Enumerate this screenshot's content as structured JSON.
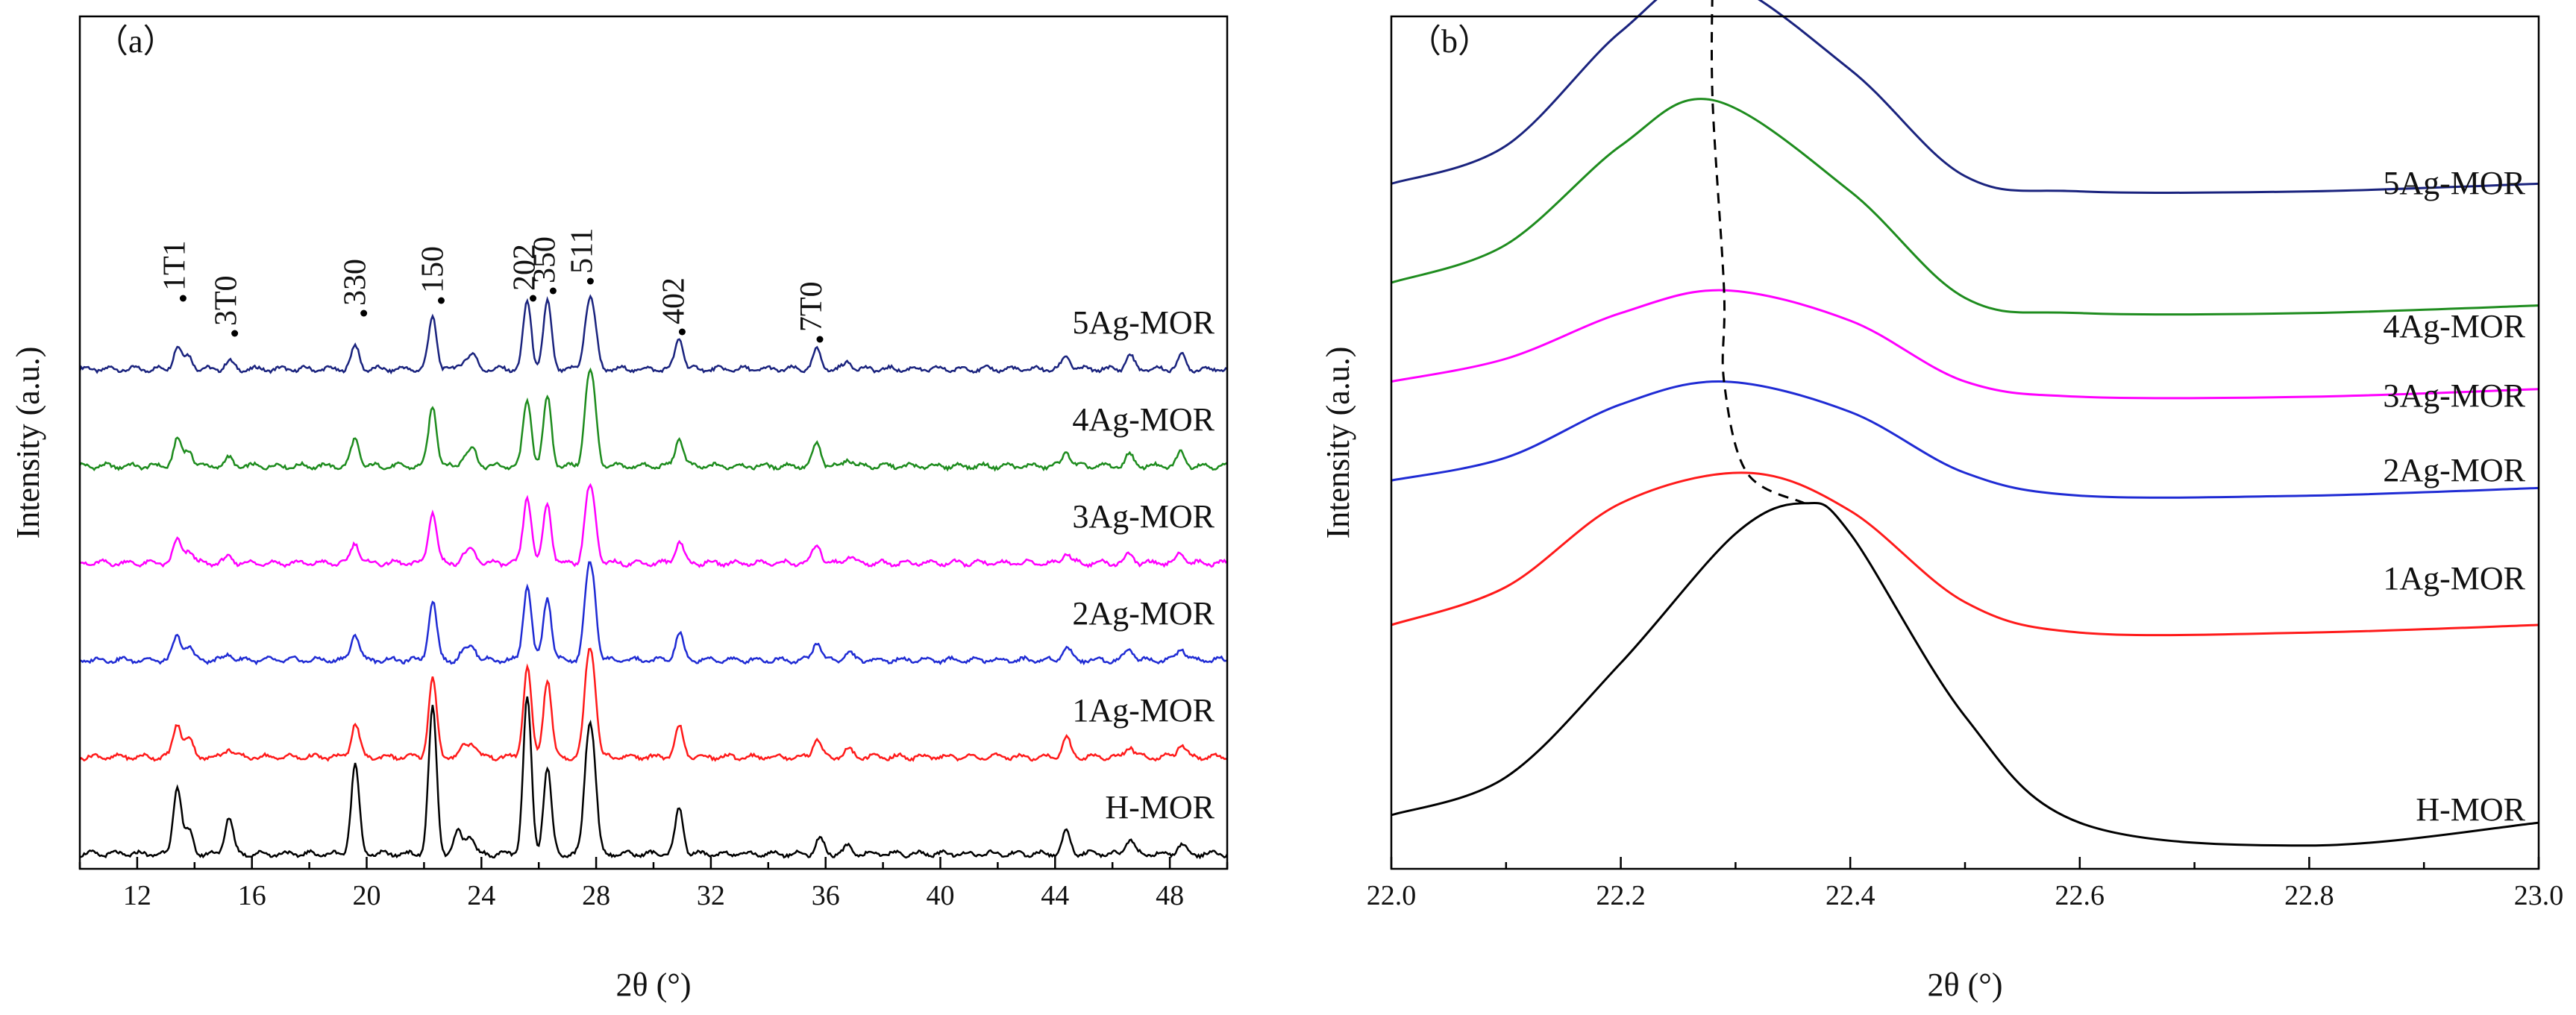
{
  "chart_data": [
    {
      "panel_label": "（a）",
      "type": "line",
      "xlabel": "2θ (°)",
      "ylabel": "Intensity (a.u.)",
      "xlim": [
        10,
        50
      ],
      "xticks": [
        "12",
        "16",
        "20",
        "24",
        "28",
        "32",
        "36",
        "40",
        "44",
        "48"
      ],
      "grid": false,
      "series": [
        {
          "name": "5Ag-MOR",
          "color": "#1a237e",
          "offset": 5,
          "peaks": [
            [
              13.4,
              0.3
            ],
            [
              13.8,
              0.18
            ],
            [
              15.2,
              0.1
            ],
            [
              19.6,
              0.3
            ],
            [
              22.3,
              0.7
            ],
            [
              23.4,
              0.12
            ],
            [
              23.7,
              0.18
            ],
            [
              25.6,
              0.9
            ],
            [
              26.3,
              0.9
            ],
            [
              27.7,
              0.65
            ],
            [
              27.9,
              0.6
            ],
            [
              30.9,
              0.42
            ],
            [
              35.7,
              0.25
            ],
            [
              36.8,
              0.1
            ],
            [
              44.4,
              0.18
            ],
            [
              46.6,
              0.18
            ],
            [
              48.4,
              0.18
            ]
          ]
        },
        {
          "name": "4Ag-MOR",
          "color": "#1e8c1e",
          "offset": 4,
          "peaks": [
            [
              13.4,
              0.35
            ],
            [
              13.8,
              0.22
            ],
            [
              15.2,
              0.1
            ],
            [
              19.6,
              0.36
            ],
            [
              22.3,
              0.82
            ],
            [
              23.4,
              0.12
            ],
            [
              23.7,
              0.22
            ],
            [
              25.6,
              0.9
            ],
            [
              26.3,
              0.92
            ],
            [
              27.7,
              0.85
            ],
            [
              27.9,
              0.8
            ],
            [
              30.9,
              0.38
            ],
            [
              35.7,
              0.3
            ],
            [
              36.8,
              0.1
            ],
            [
              44.4,
              0.2
            ],
            [
              46.6,
              0.15
            ],
            [
              48.4,
              0.18
            ]
          ]
        },
        {
          "name": "3Ag-MOR",
          "color": "#ff00ff",
          "offset": 3,
          "peaks": [
            [
              13.4,
              0.3
            ],
            [
              13.8,
              0.18
            ],
            [
              15.2,
              0.08
            ],
            [
              19.6,
              0.28
            ],
            [
              22.3,
              0.7
            ],
            [
              23.4,
              0.1
            ],
            [
              23.7,
              0.16
            ],
            [
              25.6,
              0.9
            ],
            [
              26.3,
              0.8
            ],
            [
              27.7,
              0.7
            ],
            [
              27.9,
              0.62
            ],
            [
              30.9,
              0.3
            ],
            [
              35.7,
              0.26
            ],
            [
              36.8,
              0.1
            ],
            [
              44.4,
              0.14
            ],
            [
              46.6,
              0.12
            ],
            [
              48.4,
              0.14
            ]
          ]
        },
        {
          "name": "2Ag-MOR",
          "color": "#1f2bd4",
          "offset": 2,
          "peaks": [
            [
              13.4,
              0.32
            ],
            [
              13.8,
              0.18
            ],
            [
              15.2,
              0.08
            ],
            [
              19.6,
              0.36
            ],
            [
              22.3,
              0.8
            ],
            [
              23.4,
              0.12
            ],
            [
              23.7,
              0.18
            ],
            [
              25.6,
              1.0
            ],
            [
              26.3,
              0.85
            ],
            [
              27.7,
              0.88
            ],
            [
              27.9,
              0.8
            ],
            [
              30.9,
              0.35
            ],
            [
              35.7,
              0.25
            ],
            [
              36.8,
              0.1
            ],
            [
              44.4,
              0.18
            ],
            [
              46.6,
              0.16
            ],
            [
              48.4,
              0.16
            ]
          ]
        },
        {
          "name": "1Ag-MOR",
          "color": "#ff1a1a",
          "offset": 1,
          "peaks": [
            [
              13.4,
              0.45
            ],
            [
              13.8,
              0.25
            ],
            [
              15.2,
              0.12
            ],
            [
              19.6,
              0.45
            ],
            [
              22.3,
              1.05
            ],
            [
              23.4,
              0.14
            ],
            [
              23.7,
              0.18
            ],
            [
              25.6,
              1.2
            ],
            [
              26.3,
              1.05
            ],
            [
              27.7,
              1.0
            ],
            [
              27.9,
              0.92
            ],
            [
              30.9,
              0.4
            ],
            [
              35.7,
              0.25
            ],
            [
              36.8,
              0.1
            ],
            [
              44.4,
              0.25
            ],
            [
              46.6,
              0.15
            ],
            [
              48.4,
              0.18
            ]
          ]
        },
        {
          "name": "H-MOR",
          "color": "#000000",
          "offset": 0,
          "peaks": [
            [
              13.4,
              0.9
            ],
            [
              13.8,
              0.3
            ],
            [
              15.2,
              0.5
            ],
            [
              19.6,
              1.2
            ],
            [
              22.3,
              1.95
            ],
            [
              23.2,
              0.3
            ],
            [
              23.6,
              0.25
            ],
            [
              25.6,
              2.1
            ],
            [
              26.3,
              1.15
            ],
            [
              27.7,
              1.2
            ],
            [
              27.9,
              1.1
            ],
            [
              30.9,
              0.6
            ],
            [
              35.8,
              0.2
            ],
            [
              36.8,
              0.1
            ],
            [
              44.4,
              0.3
            ],
            [
              46.6,
              0.2
            ],
            [
              48.4,
              0.12
            ]
          ]
        }
      ],
      "annotations": [
        {
          "label": "1T1",
          "x": 13.6
        },
        {
          "label": "3T0",
          "x": 15.4
        },
        {
          "label": "330",
          "x": 19.9
        },
        {
          "label": "150",
          "x": 22.6
        },
        {
          "label": "202",
          "x": 25.8
        },
        {
          "label": "350",
          "x": 26.5
        },
        {
          "label": "511",
          "x": 27.8
        },
        {
          "label": "402",
          "x": 31.0
        },
        {
          "label": "7T0",
          "x": 35.8
        }
      ]
    },
    {
      "panel_label": "（b）",
      "type": "line",
      "xlabel": "2θ (°)",
      "ylabel": "Intensity (a.u.)",
      "xlim": [
        22.0,
        23.0
      ],
      "xticks": [
        "22.0",
        "22.2",
        "22.4",
        "22.6",
        "22.8",
        "23.0"
      ],
      "grid": false,
      "series": [
        {
          "name": "5Ag-MOR",
          "color": "#1a237e",
          "x": [
            22.0,
            22.1,
            22.2,
            22.28,
            22.4,
            22.5,
            22.6,
            22.8,
            23.0
          ],
          "y": [
            0.88,
            0.93,
            1.08,
            1.15,
            1.03,
            0.89,
            0.87,
            0.87,
            0.88
          ]
        },
        {
          "name": "4Ag-MOR",
          "color": "#1e8c1e",
          "x": [
            22.0,
            22.1,
            22.2,
            22.28,
            22.4,
            22.5,
            22.6,
            22.8,
            23.0
          ],
          "y": [
            0.75,
            0.8,
            0.93,
            0.99,
            0.87,
            0.73,
            0.71,
            0.71,
            0.72
          ]
        },
        {
          "name": "3Ag-MOR",
          "color": "#ff00ff",
          "x": [
            22.0,
            22.1,
            22.2,
            22.29,
            22.4,
            22.5,
            22.6,
            22.8,
            23.0
          ],
          "y": [
            0.62,
            0.65,
            0.71,
            0.74,
            0.7,
            0.62,
            0.6,
            0.6,
            0.61
          ]
        },
        {
          "name": "2Ag-MOR",
          "color": "#1f2bd4",
          "x": [
            22.0,
            22.1,
            22.2,
            22.29,
            22.4,
            22.5,
            22.6,
            22.8,
            23.0
          ],
          "y": [
            0.49,
            0.52,
            0.59,
            0.62,
            0.58,
            0.5,
            0.47,
            0.47,
            0.48
          ]
        },
        {
          "name": "1Ag-MOR",
          "color": "#ff1a1a",
          "x": [
            22.0,
            22.1,
            22.2,
            22.31,
            22.4,
            22.5,
            22.6,
            22.8,
            23.0
          ],
          "y": [
            0.3,
            0.35,
            0.46,
            0.5,
            0.45,
            0.33,
            0.29,
            0.29,
            0.3
          ]
        },
        {
          "name": "H-MOR",
          "color": "#000000",
          "x": [
            22.0,
            22.1,
            22.2,
            22.3,
            22.36,
            22.4,
            22.5,
            22.6,
            22.8,
            23.0
          ],
          "y": [
            0.05,
            0.1,
            0.25,
            0.42,
            0.46,
            0.42,
            0.18,
            0.04,
            0.01,
            0.04
          ]
        }
      ],
      "peak_trace": {
        "style": "dashed",
        "x": [
          22.28,
          22.28,
          22.29,
          22.29,
          22.31,
          22.36
        ],
        "y": [
          1.15,
          0.99,
          0.74,
          0.62,
          0.5,
          0.46
        ]
      }
    }
  ]
}
